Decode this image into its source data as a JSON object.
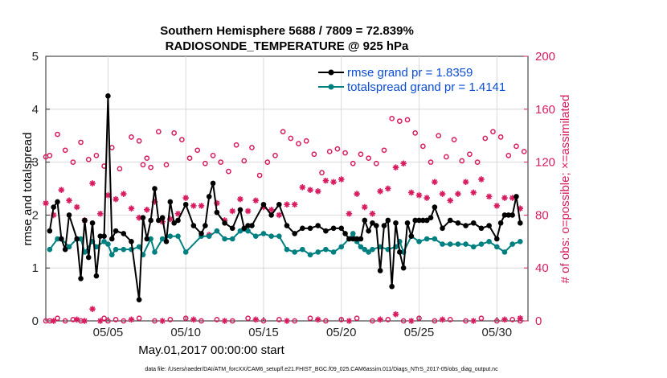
{
  "colors": {
    "rmse": "#000000",
    "spread": "#008080",
    "obs": "#d81b60",
    "axis": "#262626"
  },
  "chart_data": {
    "type": "line",
    "title": [
      "Southern Hemisphere 5688 / 7809 = 72.839%",
      "RADIOSONDE_TEMPERATURE @ 925 hPa"
    ],
    "xlabel": "May.01,2017 00:00:00 start",
    "ylabel": "rmse and totalspread",
    "ylabel_right": "# of obs: o=possible; ×=assimilated",
    "ylim": [
      0,
      5
    ],
    "ylim_right": [
      0,
      200
    ],
    "yticks": [
      0,
      1,
      2,
      3,
      4,
      5
    ],
    "yticks_right": [
      0,
      40,
      80,
      120,
      160,
      200
    ],
    "xlim": [
      1.0,
      32.0
    ],
    "xticks": [
      5,
      10,
      15,
      20,
      25,
      30
    ],
    "xtick_labels": [
      "05/05",
      "05/10",
      "05/15",
      "05/20",
      "05/25",
      "05/30"
    ],
    "legend": [
      "rmse grand pr = 1.8359",
      "totalspread grand pr = 1.4141"
    ],
    "footnote": "data file: /Users/raeder/DAI/ATM_forcXX/CAM6_setup/f.e21.FHIST_BGC.f09_025.CAM6assim.011/Diags_NTrS_2017-05/obs_diag_output.nc",
    "series": [
      {
        "name": "rmse",
        "x": [
          1.25,
          1.5,
          1.75,
          2.0,
          2.25,
          2.5,
          3.0,
          3.25,
          3.5,
          3.75,
          4.0,
          4.25,
          4.5,
          4.75,
          5.0,
          5.25,
          5.5,
          6.0,
          6.5,
          7.0,
          7.25,
          7.5,
          7.75,
          8.0,
          8.25,
          8.5,
          8.75,
          9.0,
          9.25,
          9.5,
          10.0,
          10.5,
          11.0,
          11.25,
          11.5,
          11.75,
          12.0,
          12.5,
          13.0,
          13.5,
          13.75,
          14.0,
          14.25,
          15.0,
          15.5,
          16.0,
          16.5,
          17.0,
          17.5,
          18.0,
          18.5,
          19.0,
          19.5,
          20.0,
          20.25,
          20.5,
          20.75,
          21.0,
          21.25,
          21.5,
          21.75,
          22.0,
          22.25,
          22.5,
          22.75,
          23.0,
          23.25,
          23.5,
          23.75,
          24.0,
          24.25,
          24.5,
          24.75,
          25.0,
          25.25,
          25.5,
          25.75,
          26.0,
          26.5,
          27.0,
          27.5,
          28.0,
          28.5,
          29.0,
          29.5,
          30.0,
          30.25,
          30.5,
          30.75,
          31.0,
          31.25,
          31.5
        ],
        "values": [
          1.7,
          2.15,
          2.25,
          1.55,
          1.35,
          2.0,
          1.55,
          0.8,
          1.9,
          1.2,
          1.85,
          0.85,
          1.6,
          1.6,
          4.25,
          1.55,
          1.7,
          1.65,
          1.5,
          0.4,
          1.95,
          1.55,
          1.9,
          2.5,
          1.9,
          1.95,
          1.5,
          2.25,
          1.85,
          1.9,
          2.2,
          1.8,
          1.65,
          1.8,
          2.35,
          2.6,
          2.05,
          1.85,
          1.75,
          2.1,
          1.75,
          1.8,
          1.8,
          2.2,
          2.0,
          2.2,
          1.8,
          1.65,
          1.75,
          1.75,
          1.8,
          1.7,
          1.75,
          1.75,
          1.65,
          1.55,
          1.55,
          1.55,
          1.55,
          1.9,
          1.7,
          1.85,
          1.8,
          0.95,
          1.8,
          1.9,
          0.65,
          1.85,
          1.3,
          1.0,
          1.85,
          1.6,
          1.9,
          1.9,
          1.9,
          1.9,
          1.95,
          2.15,
          1.75,
          1.9,
          1.85,
          1.8,
          1.85,
          1.75,
          1.8,
          1.55,
          1.85,
          2.0,
          2.0,
          2.0,
          2.35,
          1.85
        ]
      },
      {
        "name": "totalspread",
        "x": [
          1.25,
          1.75,
          2.0,
          2.5,
          3.0,
          3.25,
          3.5,
          4.0,
          4.25,
          4.75,
          5.0,
          5.25,
          5.5,
          6.0,
          6.5,
          7.0,
          7.25,
          7.75,
          8.0,
          8.5,
          9.0,
          9.5,
          10.0,
          11.0,
          11.5,
          12.0,
          12.5,
          13.0,
          13.5,
          14.0,
          14.5,
          15.0,
          15.5,
          16.0,
          16.5,
          17.0,
          17.5,
          18.0,
          18.5,
          19.0,
          19.5,
          20.0,
          20.5,
          20.75,
          21.0,
          21.25,
          21.5,
          21.75,
          22.0,
          22.5,
          23.0,
          23.5,
          23.75,
          24.0,
          24.5,
          25.0,
          25.5,
          26.0,
          26.5,
          27.0,
          27.5,
          28.0,
          28.5,
          29.0,
          29.5,
          30.0,
          30.5,
          31.0,
          31.5
        ],
        "values": [
          1.35,
          1.55,
          1.55,
          1.4,
          1.55,
          1.55,
          1.3,
          1.5,
          1.4,
          1.5,
          1.45,
          1.25,
          1.35,
          1.35,
          1.35,
          1.4,
          1.25,
          1.55,
          1.3,
          1.55,
          1.6,
          1.6,
          1.3,
          1.6,
          1.6,
          1.7,
          1.55,
          1.55,
          1.7,
          1.7,
          1.6,
          1.65,
          1.6,
          1.6,
          1.35,
          1.3,
          1.35,
          1.25,
          1.3,
          1.35,
          1.3,
          1.4,
          1.55,
          1.65,
          1.5,
          1.4,
          1.35,
          1.3,
          1.35,
          1.4,
          1.35,
          1.4,
          1.5,
          1.3,
          1.6,
          1.5,
          1.55,
          1.55,
          1.45,
          1.45,
          1.45,
          1.45,
          1.4,
          1.45,
          1.5,
          1.4,
          1.3,
          1.45,
          1.5
        ]
      },
      {
        "name": "obs_possible",
        "axis": "right",
        "x": [
          1.0,
          1.25,
          1.75,
          2.25,
          2.75,
          3.25,
          3.75,
          4.25,
          4.75,
          5.25,
          5.75,
          6.5,
          7.0,
          7.25,
          7.5,
          7.75,
          8.25,
          8.75,
          9.25,
          9.75,
          10.25,
          10.75,
          11.25,
          11.75,
          12.25,
          12.75,
          13.25,
          13.75,
          14.25,
          14.75,
          15.25,
          15.75,
          16.25,
          16.75,
          17.25,
          17.75,
          18.25,
          18.75,
          19.25,
          19.75,
          20.25,
          20.75,
          21.25,
          21.75,
          22.25,
          22.75,
          23.25,
          23.75,
          24.25,
          24.75,
          25.25,
          25.75,
          26.25,
          26.75,
          27.25,
          27.75,
          28.25,
          28.75,
          29.25,
          29.75,
          30.25,
          30.75,
          31.25,
          31.75
        ],
        "values": [
          124,
          125,
          141,
          129,
          120,
          135,
          122,
          125,
          117,
          131,
          115,
          139,
          136,
          118,
          123,
          116,
          143,
          118,
          142,
          137,
          123,
          129,
          119,
          125,
          120,
          113,
          133,
          121,
          131,
          110,
          120,
          125,
          143,
          138,
          134,
          136,
          126,
          112,
          128,
          130,
          127,
          119,
          126,
          123,
          119,
          129,
          153,
          151,
          152,
          142,
          132,
          120,
          140,
          124,
          137,
          121,
          126,
          120,
          138,
          143,
          139,
          125,
          132,
          128
        ]
      },
      {
        "name": "obs_assimilated",
        "axis": "right",
        "x": [
          1.0,
          1.5,
          2.0,
          2.5,
          3.0,
          3.5,
          4.0,
          4.5,
          5.0,
          5.5,
          6.0,
          6.5,
          7.0,
          7.5,
          8.0,
          8.5,
          9.0,
          9.5,
          10.0,
          10.5,
          11.0,
          11.5,
          12.0,
          12.5,
          13.0,
          13.5,
          14.0,
          14.5,
          15.0,
          15.5,
          16.0,
          16.5,
          17.0,
          17.5,
          18.0,
          18.5,
          19.0,
          19.5,
          20.0,
          20.5,
          21.0,
          21.5,
          22.0,
          22.5,
          23.0,
          23.5,
          24.0,
          24.5,
          25.0,
          25.5,
          26.0,
          26.5,
          27.0,
          27.5,
          28.0,
          28.5,
          29.0,
          29.5,
          30.0,
          30.5,
          31.0,
          31.5
        ],
        "values": [
          89,
          80,
          99,
          91,
          86,
          76,
          104,
          81,
          95,
          92,
          96,
          85,
          78,
          84,
          90,
          75,
          77,
          81,
          93,
          87,
          87,
          65,
          89,
          76,
          83,
          92,
          83,
          91,
          86,
          84,
          80,
          88,
          88,
          101,
          99,
          98,
          106,
          105,
          107,
          81,
          96,
          86,
          81,
          98,
          100,
          116,
          119,
          97,
          95,
          93,
          105,
          96,
          91,
          96,
          105,
          97,
          107,
          94,
          87,
          93,
          93,
          85
        ]
      },
      {
        "name": "obs_low_possible",
        "axis": "right",
        "x": [
          1.0,
          1.25,
          1.75,
          2.25,
          2.75,
          3.25,
          4.75,
          5.0,
          5.5,
          6.0,
          7.0,
          8.0,
          9.0,
          10.0,
          11.0,
          12.0,
          13.0,
          14.0,
          15.0,
          16.0,
          17.0,
          18.0,
          19.0,
          20.0,
          21.0,
          22.0,
          23.0,
          24.0,
          25.0,
          26.0,
          27.0,
          28.0,
          29.0,
          30.0,
          31.0,
          31.5
        ],
        "values": [
          0,
          0,
          2,
          0,
          1,
          0,
          2,
          0,
          1,
          0,
          2,
          0,
          1,
          2,
          0,
          1,
          0,
          2,
          0,
          1,
          0,
          2,
          0,
          1,
          2,
          0,
          1,
          0,
          2,
          0,
          1,
          0,
          2,
          0,
          1,
          0
        ]
      },
      {
        "name": "obs_low_assimilated",
        "axis": "right",
        "x": [
          1.5,
          3.0,
          3.5,
          4.0,
          4.5,
          6.5,
          8.5,
          10.5,
          12.5,
          14.5,
          16.5,
          18.5,
          20.5,
          22.5,
          23.5,
          24.5,
          26.5,
          28.5,
          30.5,
          31.5
        ],
        "values": [
          0,
          1,
          0,
          9,
          0,
          1,
          0,
          1,
          0,
          1,
          0,
          1,
          0,
          1,
          5,
          0,
          1,
          0,
          1,
          2
        ]
      }
    ]
  }
}
